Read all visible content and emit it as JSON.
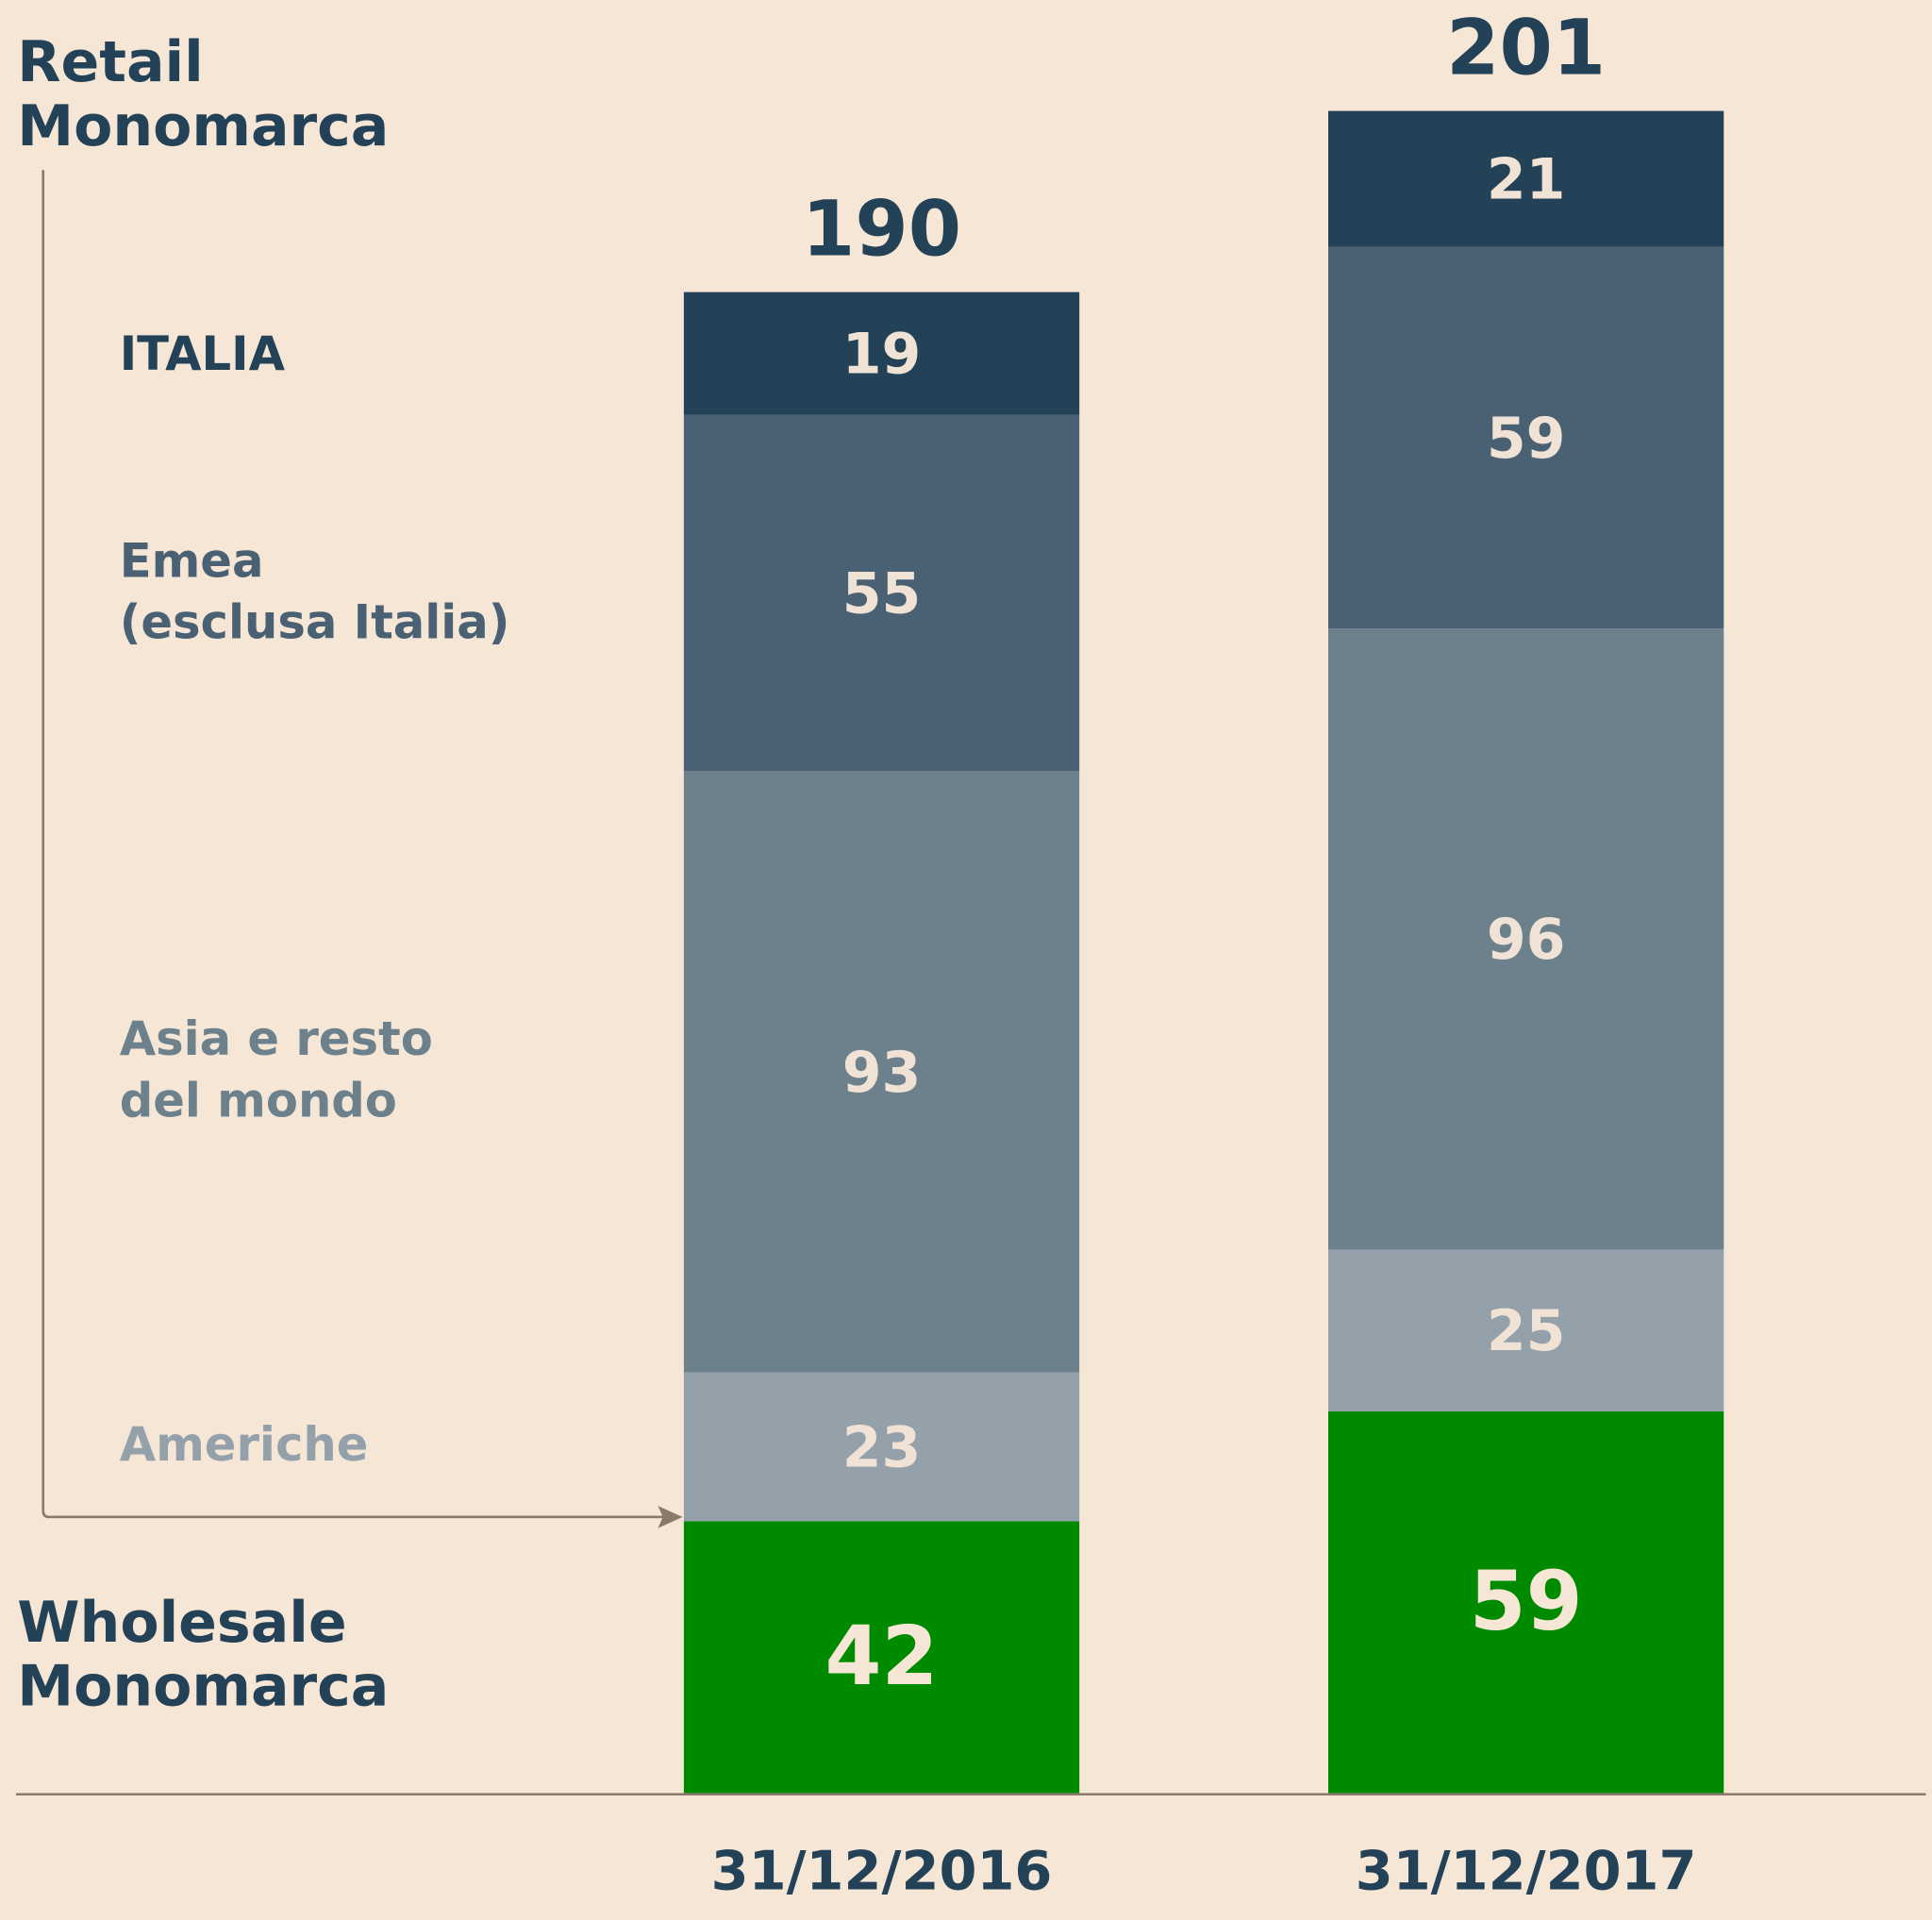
{
  "chart_data": {
    "type": "bar",
    "stacked": true,
    "categories": [
      "31/12/2016",
      "31/12/2017"
    ],
    "group_labels": {
      "retail": [
        "Retail",
        "Monomarca"
      ],
      "wholesale": [
        "Wholesale",
        "Monomarca"
      ]
    },
    "totals_retail": [
      190,
      201
    ],
    "series": [
      {
        "name": "Wholesale Monomarca",
        "values": [
          42,
          59
        ],
        "color": "#008a00"
      },
      {
        "name": "Americhe",
        "values": [
          23,
          25
        ],
        "color": "#94a1ab"
      },
      {
        "name": "Asia e resto del mondo",
        "values": [
          93,
          96
        ],
        "color": "#6d818d"
      },
      {
        "name": "Emea (esclusa Italia)",
        "values": [
          55,
          59
        ],
        "color": "#4a6174"
      },
      {
        "name": "ITALIA",
        "values": [
          19,
          21
        ],
        "color": "#244257"
      }
    ],
    "legend_labels": [
      {
        "lines": [
          "ITALIA"
        ],
        "color": "#244257"
      },
      {
        "lines": [
          "Emea",
          "(esclusa Italia)"
        ],
        "color": "#4a6174"
      },
      {
        "lines": [
          "Asia e resto",
          "del mondo"
        ],
        "color": "#6d818d"
      },
      {
        "lines": [
          "Americhe"
        ],
        "color": "#94a1ab"
      }
    ],
    "legend_placement": "left",
    "grid": false
  }
}
